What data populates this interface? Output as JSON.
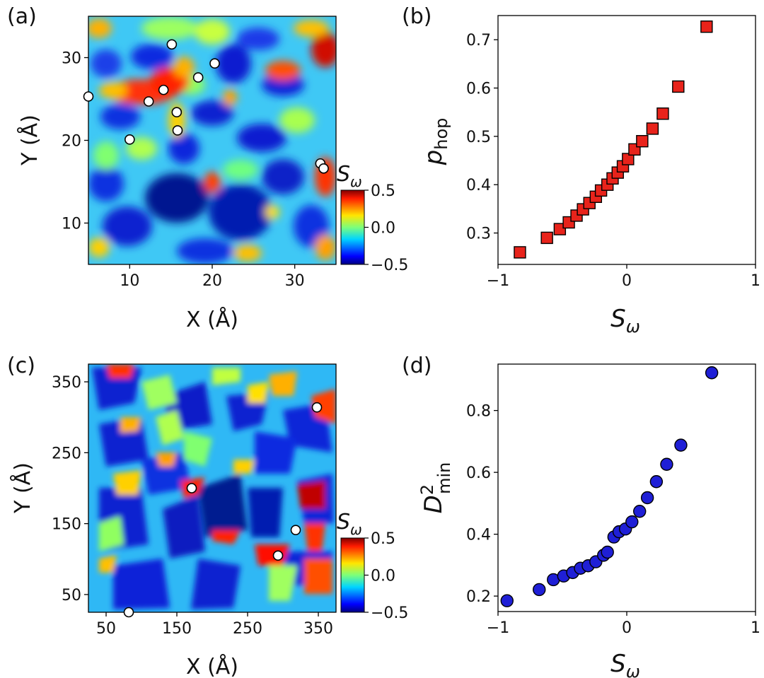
{
  "chart_data": [
    {
      "panel": "(a)",
      "type": "heatmap",
      "xlabel": "X (Å)",
      "ylabel": "Y (Å)",
      "xlim": [
        5,
        35
      ],
      "ylim": [
        5,
        35
      ],
      "xticks": [
        10,
        20,
        30
      ],
      "yticks": [
        10,
        20,
        30
      ],
      "colorbar": {
        "label": "S",
        "label_sub": "ω",
        "ticks": [
          0.5,
          0.0,
          -0.5
        ],
        "tick_labels": [
          "0.5",
          "0.0",
          "−0.5"
        ],
        "range": [
          -0.5,
          0.5
        ],
        "colormap": "jet"
      },
      "markers": [
        [
          5.0,
          25.3
        ],
        [
          12.3,
          24.7
        ],
        [
          14.1,
          26.1
        ],
        [
          15.1,
          31.6
        ],
        [
          18.3,
          27.6
        ],
        [
          20.3,
          29.3
        ],
        [
          15.7,
          23.4
        ],
        [
          15.8,
          21.2
        ],
        [
          10.0,
          20.1
        ],
        [
          33.1,
          17.2
        ],
        [
          33.5,
          16.6
        ]
      ]
    },
    {
      "panel": "(b)",
      "type": "scatter",
      "xlabel": "S",
      "xlabel_sub": "ω",
      "ylabel": "p",
      "ylabel_sub": "hop",
      "xlim": [
        -1,
        1
      ],
      "ylim": [
        0.235,
        0.75
      ],
      "xticks": [
        -1,
        0,
        1
      ],
      "xtick_labels": [
        "−1",
        "0",
        "1"
      ],
      "yticks": [
        0.3,
        0.4,
        0.5,
        0.6,
        0.7
      ],
      "ytick_labels": [
        "0.3",
        "0.4",
        "0.5",
        "0.6",
        "0.7"
      ],
      "marker": "square",
      "color": "#e8231b",
      "x": [
        -0.83,
        -0.62,
        -0.52,
        -0.45,
        -0.39,
        -0.34,
        -0.29,
        -0.24,
        -0.2,
        -0.15,
        -0.11,
        -0.07,
        -0.03,
        0.01,
        0.06,
        0.12,
        0.2,
        0.28,
        0.4,
        0.62
      ],
      "y": [
        0.26,
        0.29,
        0.308,
        0.322,
        0.336,
        0.349,
        0.362,
        0.375,
        0.388,
        0.4,
        0.413,
        0.425,
        0.438,
        0.453,
        0.473,
        0.49,
        0.516,
        0.547,
        0.603,
        0.727
      ]
    },
    {
      "panel": "(c)",
      "type": "heatmap",
      "xlabel": "X (Å)",
      "ylabel": "Y (Å)",
      "xlim": [
        25,
        375
      ],
      "ylim": [
        25,
        375
      ],
      "xticks": [
        50,
        150,
        250,
        350
      ],
      "yticks": [
        50,
        150,
        250,
        350
      ],
      "colorbar": {
        "label": "S",
        "label_sub": "ω",
        "ticks": [
          0.5,
          0.0,
          -0.5
        ],
        "tick_labels": [
          "0.5",
          "0.0",
          "−0.5"
        ],
        "range": [
          -0.5,
          0.5
        ],
        "colormap": "jet"
      },
      "markers": [
        [
          348,
          314
        ],
        [
          171,
          200
        ],
        [
          318,
          141
        ],
        [
          293,
          105
        ],
        [
          82,
          25
        ]
      ]
    },
    {
      "panel": "(d)",
      "type": "scatter",
      "xlabel": "S",
      "xlabel_sub": "ω",
      "ylabel": "D",
      "ylabel_sup": "2",
      "ylabel_sub": "min",
      "xlim": [
        -1,
        1
      ],
      "ylim": [
        0.15,
        0.95
      ],
      "xticks": [
        -1,
        0,
        1
      ],
      "xtick_labels": [
        "−1",
        "0",
        "1"
      ],
      "yticks": [
        0.2,
        0.4,
        0.6,
        0.8
      ],
      "ytick_labels": [
        "0.2",
        "0.4",
        "0.6",
        "0.8"
      ],
      "marker": "circle",
      "color": "#1f1fd6",
      "x": [
        -0.93,
        -0.68,
        -0.57,
        -0.49,
        -0.42,
        -0.36,
        -0.3,
        -0.24,
        -0.18,
        -0.15,
        -0.1,
        -0.06,
        -0.01,
        0.04,
        0.1,
        0.16,
        0.23,
        0.31,
        0.42,
        0.66
      ],
      "y": [
        0.185,
        0.221,
        0.253,
        0.265,
        0.276,
        0.29,
        0.298,
        0.311,
        0.332,
        0.342,
        0.391,
        0.408,
        0.417,
        0.44,
        0.474,
        0.518,
        0.57,
        0.626,
        0.688,
        0.922
      ]
    }
  ]
}
